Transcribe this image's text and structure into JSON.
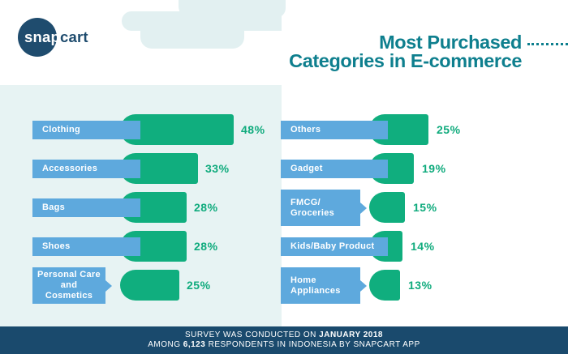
{
  "brand": {
    "snap": "snap",
    "cart": "cart"
  },
  "title": {
    "line1": "Most Purchased",
    "line2": "Categories in E-commerce"
  },
  "footer": {
    "line1_pre": "SURVEY WAS CONDUCTED ON ",
    "line1_bold": "JANUARY 2018",
    "line2_pre": "AMONG ",
    "line2_bold": "6,123",
    "line2_post": " RESPONDENTS IN INDONESIA BY SNAPCART APP"
  },
  "colors": {
    "bar_green": "#10ae7e",
    "label_blue": "#5ea9dd",
    "title_teal": "#0e7f8e",
    "footer_navy": "#1a4a6d",
    "logo_navy": "#1f4c6e",
    "panel_light": "#e7f3f3"
  },
  "chart_data": {
    "type": "bar",
    "orientation": "horizontal",
    "title": "Most Purchased Categories in E-commerce",
    "value_unit": "%",
    "columns": [
      {
        "side": "left",
        "items": [
          {
            "label_lines": [
              "Clothing"
            ],
            "value": 48,
            "display": "48%",
            "pointer": false,
            "align": "left"
          },
          {
            "label_lines": [
              "Accessories"
            ],
            "value": 33,
            "display": "33%",
            "pointer": false,
            "align": "left"
          },
          {
            "label_lines": [
              "Bags"
            ],
            "value": 28,
            "display": "28%",
            "pointer": false,
            "align": "left"
          },
          {
            "label_lines": [
              "Shoes"
            ],
            "value": 28,
            "display": "28%",
            "pointer": false,
            "align": "left"
          },
          {
            "label_lines": [
              "Personal Care",
              "and Cosmetics"
            ],
            "value": 25,
            "display": "25%",
            "pointer": true,
            "align": "center"
          }
        ]
      },
      {
        "side": "right",
        "items": [
          {
            "label_lines": [
              "Others"
            ],
            "value": 25,
            "display": "25%",
            "pointer": false,
            "align": "left"
          },
          {
            "label_lines": [
              "Gadget"
            ],
            "value": 19,
            "display": "19%",
            "pointer": false,
            "align": "left"
          },
          {
            "label_lines": [
              "FMCG/",
              "Groceries"
            ],
            "value": 15,
            "display": "15%",
            "pointer": true,
            "align": "left"
          },
          {
            "label_lines": [
              "Kids/Baby Product"
            ],
            "value": 14,
            "display": "14%",
            "pointer": false,
            "align": "left"
          },
          {
            "label_lines": [
              "Home",
              "Appliances"
            ],
            "value": 13,
            "display": "13%",
            "pointer": true,
            "align": "left"
          }
        ]
      }
    ]
  }
}
